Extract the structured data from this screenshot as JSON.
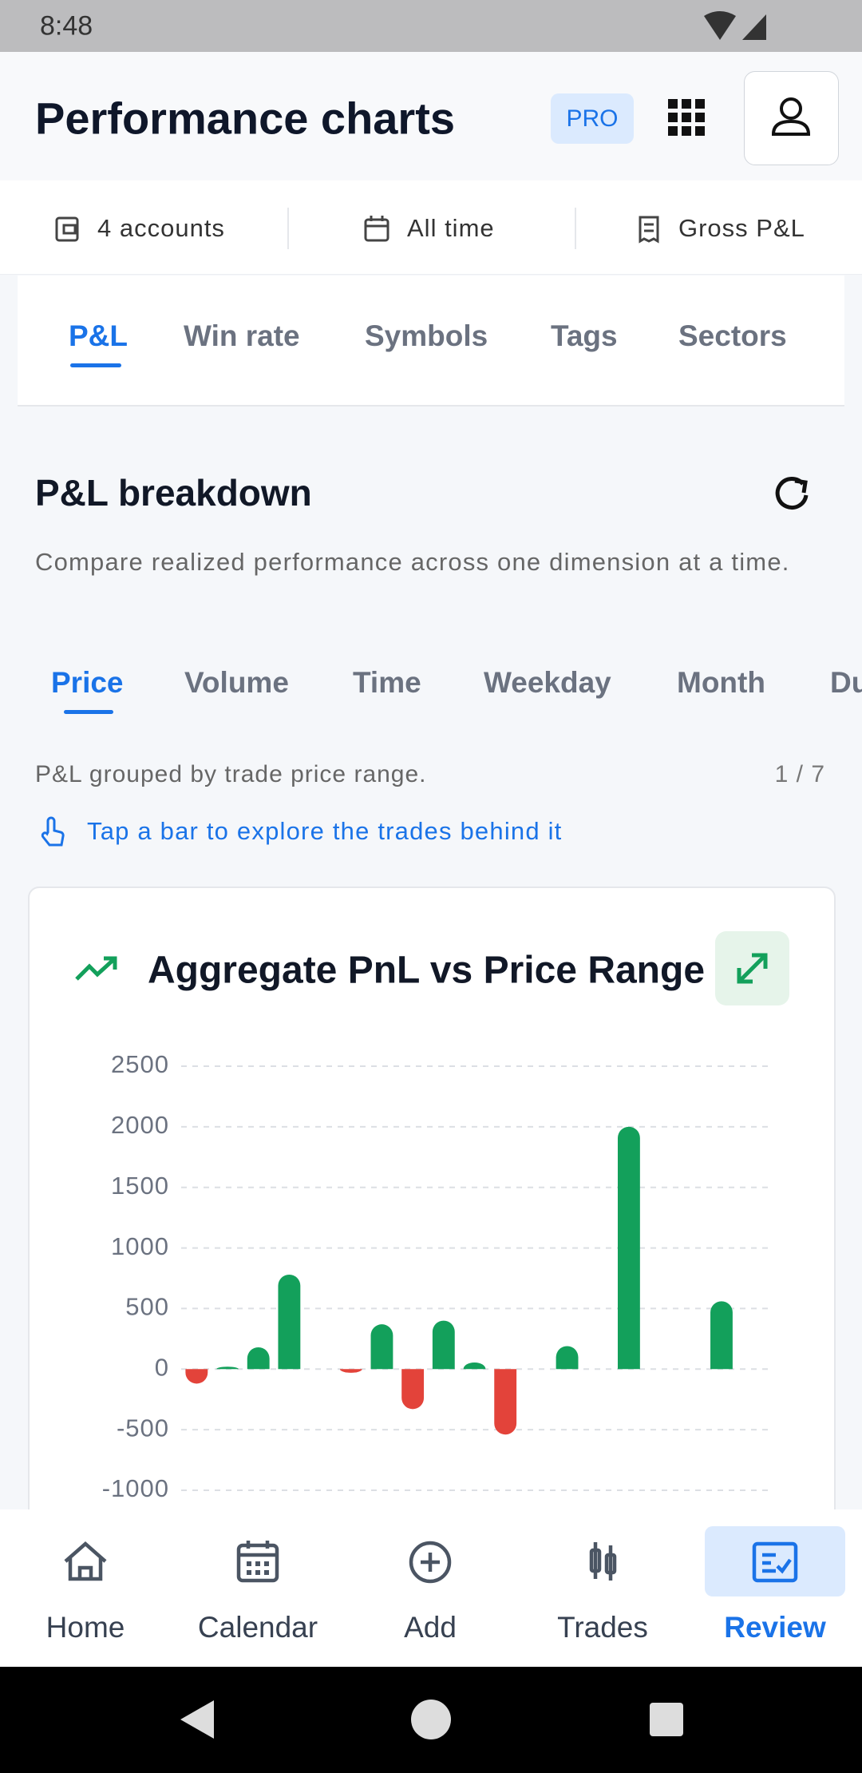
{
  "status": {
    "time": "8:48"
  },
  "header": {
    "title": "Performance charts",
    "badge": "PRO"
  },
  "filters": [
    "4 accounts",
    "All time",
    "Gross P&L"
  ],
  "tabs": [
    "P&L",
    "Win rate",
    "Symbols",
    "Tags",
    "Sectors"
  ],
  "section": {
    "title": "P&L breakdown",
    "description": "Compare realized performance across one dimension at a time."
  },
  "subtabs": [
    "Price",
    "Volume",
    "Time",
    "Weekday",
    "Month",
    "Du"
  ],
  "caption": "P&L grouped by trade price range.",
  "pager": "1 / 7",
  "hint": "Tap a bar to explore the trades behind it",
  "chart_data": {
    "type": "bar",
    "title": "Aggregate PnL vs Price Range",
    "categories": [
      null,
      null,
      null,
      null,
      null,
      null,
      null,
      null,
      null,
      null,
      null,
      null,
      null,
      null,
      null,
      null,
      null,
      null,
      null
    ],
    "values": [
      -120,
      20,
      180,
      780,
      null,
      -30,
      370,
      -330,
      400,
      55,
      -540,
      null,
      190,
      null,
      2000,
      null,
      null,
      560,
      null
    ],
    "positive_color": "#13a05b",
    "negative_color": "#e3433a",
    "ylim": [
      -1000,
      2500
    ],
    "yticks": [
      -1000,
      -500,
      0,
      500,
      1000,
      1500,
      2000,
      2500
    ],
    "grid": true
  },
  "nav": [
    "Home",
    "Calendar",
    "Add",
    "Trades",
    "Review"
  ]
}
